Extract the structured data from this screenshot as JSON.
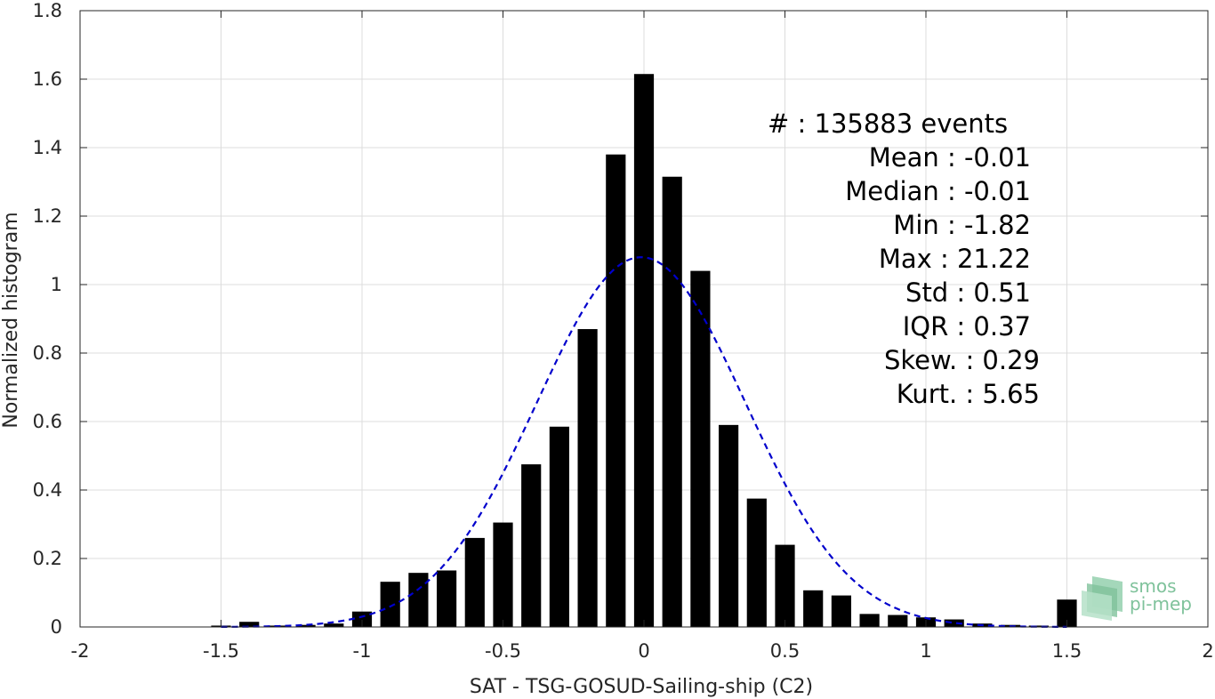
{
  "chart_data": {
    "type": "bar",
    "xlabel": "SAT - TSG-GOSUD-Sailing-ship (C2)",
    "ylabel": "Normalized histogram",
    "xlim": [
      -2,
      2
    ],
    "ylim": [
      0,
      1.8
    ],
    "x_ticks": [
      "-2",
      "-1.5",
      "-1",
      "-0.5",
      "0",
      "0.5",
      "1",
      "1.5",
      "2"
    ],
    "y_ticks": [
      "0",
      "0.2",
      "0.4",
      "0.6",
      "0.8",
      "1",
      "1.2",
      "1.4",
      "1.6",
      "1.8"
    ],
    "grid": true,
    "bar_color": "#000000",
    "bar_width": 0.07,
    "x": [
      -1.5,
      -1.4,
      -1.3,
      -1.2,
      -1.1,
      -1.0,
      -0.9,
      -0.8,
      -0.7,
      -0.6,
      -0.5,
      -0.4,
      -0.3,
      -0.2,
      -0.1,
      0.0,
      0.1,
      0.2,
      0.3,
      0.4,
      0.5,
      0.6,
      0.7,
      0.8,
      0.9,
      1.0,
      1.1,
      1.2,
      1.3,
      1.4,
      1.5
    ],
    "values": [
      0.004,
      0.015,
      0.004,
      0.006,
      0.01,
      0.045,
      0.132,
      0.158,
      0.165,
      0.26,
      0.305,
      0.475,
      0.585,
      0.87,
      1.38,
      1.615,
      1.315,
      1.04,
      0.59,
      0.375,
      0.24,
      0.107,
      0.092,
      0.038,
      0.035,
      0.028,
      0.022,
      0.01,
      0.006,
      0.004,
      0.08
    ],
    "fit_curve": {
      "style": "dashed",
      "color": "#0000cc",
      "distribution": "normal",
      "mean": -0.01,
      "std": 0.37,
      "peak": 1.08,
      "x_range": [
        -1.5,
        1.5
      ]
    }
  },
  "stats": {
    "lines": [
      "#  : 135883 events",
      "Mean : -0.01",
      "Median : -0.01",
      "Min : -1.82",
      "Max : 21.22",
      "Std : 0.51",
      "IQR : 0.37",
      "Skew. : 0.29",
      "Kurt. : 5.65"
    ]
  },
  "logo": {
    "line1": "smos",
    "line2": "pi-mep",
    "color": "#7fc29b"
  }
}
